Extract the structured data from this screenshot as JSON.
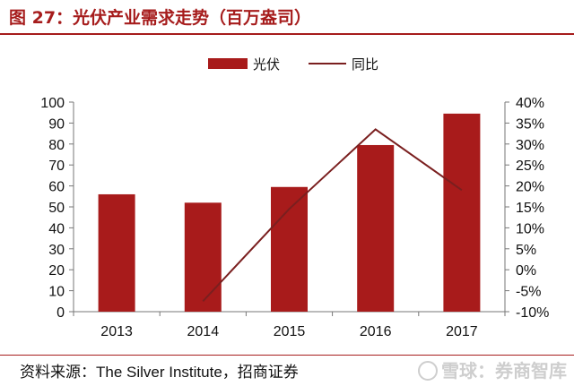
{
  "header": {
    "title": "图 27：光伏产业需求走势（百万盎司）"
  },
  "footer": {
    "source_prefix": "资料来源：",
    "source_institution": "The Silver Institute",
    "source_suffix": "，招商证券",
    "watermark": "雪球：券商智库"
  },
  "colors": {
    "bar": "#a81b1b",
    "line": "#7a1f1f",
    "title": "#a61c1c"
  },
  "chart_data": {
    "type": "bar",
    "categories": [
      "2013",
      "2014",
      "2015",
      "2016",
      "2017"
    ],
    "series": [
      {
        "name": "光伏",
        "type": "bar",
        "axis": "left",
        "values": [
          56,
          52,
          59.5,
          79.5,
          94.5
        ]
      },
      {
        "name": "同比",
        "type": "line",
        "axis": "right",
        "values": [
          null,
          -7.5,
          14.5,
          33.5,
          19
        ]
      }
    ],
    "ylim": [
      0,
      100
    ],
    "y_ticks": [
      "0",
      "10",
      "20",
      "30",
      "40",
      "50",
      "60",
      "70",
      "80",
      "90",
      "100"
    ],
    "y2lim": [
      -0.1,
      0.4
    ],
    "y2_ticks": [
      "-10%",
      "-5%",
      "0%",
      "5%",
      "10%",
      "15%",
      "20%",
      "25%",
      "30%",
      "35%",
      "40%"
    ],
    "legend_position": "top-center",
    "grid": false
  }
}
